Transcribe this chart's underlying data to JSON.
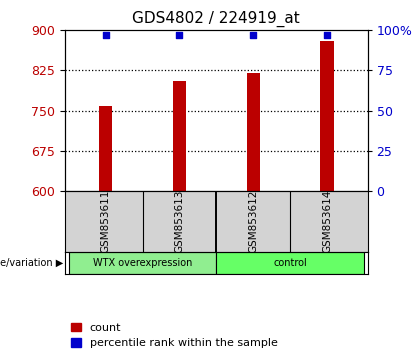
{
  "title": "GDS4802 / 224919_at",
  "samples": [
    "GSM853611",
    "GSM853613",
    "GSM853612",
    "GSM853614"
  ],
  "bar_values": [
    758,
    805,
    820,
    880
  ],
  "percentile_values": [
    97,
    97,
    97,
    97
  ],
  "ylim_left": [
    600,
    900
  ],
  "yticks_left": [
    600,
    675,
    750,
    825,
    900
  ],
  "ylim_right": [
    0,
    100
  ],
  "yticks_right": [
    0,
    25,
    50,
    75,
    100
  ],
  "bar_color": "#bb0000",
  "percentile_color": "#0000cc",
  "bar_width": 0.18,
  "group_color_wtx": "#90ee90",
  "group_color_control": "#66ff66",
  "group_label_left": "genotype/variation",
  "gridline_values": [
    675,
    750,
    825
  ],
  "title_fontsize": 11,
  "tick_fontsize": 9,
  "legend_fontsize": 8,
  "background_color": "#ffffff",
  "label_box_color": "#d3d3d3",
  "percentile_marker_size": 22
}
